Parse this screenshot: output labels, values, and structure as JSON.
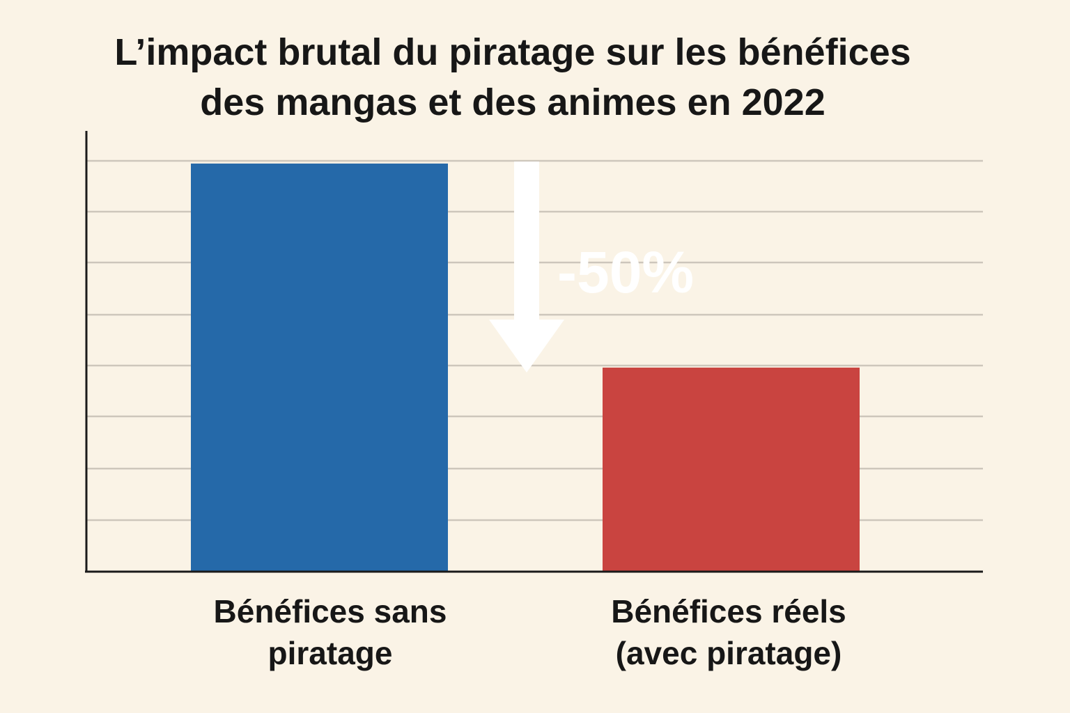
{
  "chart_data": {
    "type": "bar",
    "title": [
      "L’impact brutal du piratage sur les bénéfices",
      "des mangas et des animes en 2022"
    ],
    "categories": [
      [
        "Bénéfices sans",
        "piratage"
      ],
      [
        "Bénéfices réels",
        "(avec piratage)"
      ]
    ],
    "values": [
      100,
      50
    ],
    "ylim": [
      0,
      108
    ],
    "grid": true,
    "bar_colors": [
      "#2569a9",
      "#c94440"
    ],
    "annotation": {
      "label": "-50%",
      "arrow_direction": "down",
      "color": "#ffffff"
    },
    "xlabel": "",
    "ylabel": ""
  }
}
